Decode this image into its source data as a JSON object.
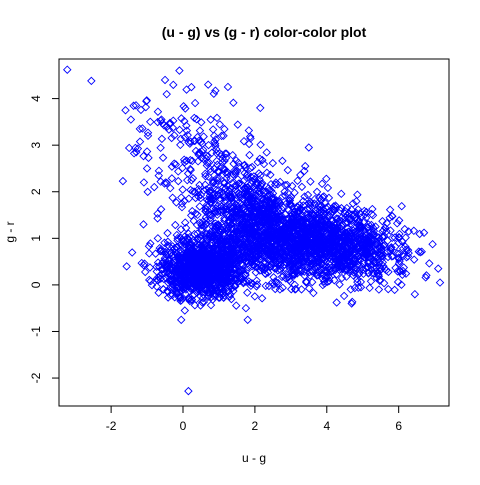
{
  "chart_data": {
    "type": "scatter",
    "title": "(u - g) vs (g - r) color-color plot",
    "xlabel": "u - g",
    "ylabel": "g - r",
    "xlim": [
      -3.45,
      7.4
    ],
    "ylim": [
      -2.6,
      4.85
    ],
    "x_ticks": [
      -2,
      0,
      2,
      4,
      6
    ],
    "y_ticks": [
      -2,
      -1,
      0,
      1,
      2,
      3,
      4
    ],
    "marker": "diamond-open",
    "color": "#0000ff",
    "grid": false,
    "series": [
      {
        "points": [
          [
            -3.22,
            4.62
          ],
          [
            -2.55,
            4.38
          ],
          [
            -0.1,
            4.6
          ],
          [
            -0.5,
            4.4
          ],
          [
            0.7,
            4.3
          ],
          [
            1.25,
            4.25
          ],
          [
            -1.6,
            3.75
          ],
          [
            -1.45,
            3.55
          ],
          [
            -1.2,
            3.35
          ],
          [
            -0.6,
            3.55
          ],
          [
            -1.3,
            2.85
          ],
          [
            -1.0,
            2.5
          ],
          [
            -0.8,
            2.1
          ],
          [
            -1.1,
            1.3
          ],
          [
            -0.7,
            1.0
          ],
          [
            -0.55,
            0.5
          ],
          [
            2.15,
            3.8
          ],
          [
            3.5,
            2.95
          ],
          [
            3.4,
            2.55
          ],
          [
            5.55,
            1.15
          ],
          [
            6.0,
            0.9
          ],
          [
            6.6,
            0.7
          ],
          [
            7.1,
            0.35
          ],
          [
            7.15,
            0.05
          ],
          [
            6.45,
            -0.2
          ],
          [
            5.45,
            -0.1
          ],
          [
            4.95,
            -0.05
          ],
          [
            1.75,
            -0.5
          ],
          [
            1.8,
            -0.75
          ],
          [
            0.05,
            -0.55
          ],
          [
            -0.05,
            -0.75
          ],
          [
            0.15,
            -2.28
          ]
        ],
        "clusters": [
          {
            "cx": 0.5,
            "cy": 0.35,
            "sx": 0.55,
            "sy": 0.3,
            "n": 1100
          },
          {
            "cx": 2.4,
            "cy": 1.05,
            "sx": 1.0,
            "sy": 0.45,
            "n": 1300
          },
          {
            "cx": 4.2,
            "cy": 0.85,
            "sx": 0.8,
            "sy": 0.4,
            "n": 700
          },
          {
            "cx": 1.5,
            "cy": 1.9,
            "sx": 0.8,
            "sy": 0.4,
            "n": 280
          },
          {
            "cx": 0.8,
            "cy": 2.8,
            "sx": 0.55,
            "sy": 0.5,
            "n": 90
          },
          {
            "cx": -0.6,
            "cy": 3.2,
            "sx": 0.55,
            "sy": 0.55,
            "n": 60
          },
          {
            "cx": 5.4,
            "cy": 0.7,
            "sx": 0.6,
            "sy": 0.35,
            "n": 140
          }
        ]
      }
    ]
  }
}
